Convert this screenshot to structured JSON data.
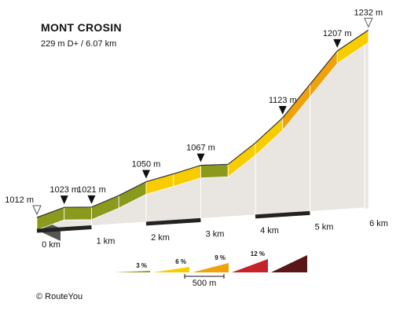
{
  "title": "MONT CROSIN",
  "subtitle": "229 m D+ / 6.07 km",
  "credit": "© RouteYou",
  "chart_data": {
    "type": "area",
    "distance_labels": [
      "0 km",
      "1 km",
      "2 km",
      "3 km",
      "4 km",
      "5 km",
      "6 km"
    ],
    "segments": [
      {
        "from_km": 0.0,
        "to_km": 0.5,
        "grade_class": 3
      },
      {
        "from_km": 0.5,
        "to_km": 1.0,
        "grade_class": 3
      },
      {
        "from_km": 1.0,
        "to_km": 1.5,
        "grade_class": 3
      },
      {
        "from_km": 1.5,
        "to_km": 2.0,
        "grade_class": 3
      },
      {
        "from_km": 2.0,
        "to_km": 2.5,
        "grade_class": 6
      },
      {
        "from_km": 2.5,
        "to_km": 3.0,
        "grade_class": 6
      },
      {
        "from_km": 3.0,
        "to_km": 3.5,
        "grade_class": 3
      },
      {
        "from_km": 3.5,
        "to_km": 4.0,
        "grade_class": 6
      },
      {
        "from_km": 4.0,
        "to_km": 4.5,
        "grade_class": 6
      },
      {
        "from_km": 4.5,
        "to_km": 5.0,
        "grade_class": 9
      },
      {
        "from_km": 5.0,
        "to_km": 5.5,
        "grade_class": 9
      },
      {
        "from_km": 5.5,
        "to_km": 6.07,
        "grade_class": 6
      }
    ],
    "profile": [
      {
        "km": 0.0,
        "elev": 1012
      },
      {
        "km": 0.5,
        "elev": 1023
      },
      {
        "km": 1.0,
        "elev": 1021
      },
      {
        "km": 1.5,
        "elev": 1034
      },
      {
        "km": 2.0,
        "elev": 1050
      },
      {
        "km": 2.5,
        "elev": 1058
      },
      {
        "km": 3.0,
        "elev": 1067
      },
      {
        "km": 3.5,
        "elev": 1066
      },
      {
        "km": 4.0,
        "elev": 1092
      },
      {
        "km": 4.5,
        "elev": 1123
      },
      {
        "km": 5.0,
        "elev": 1165
      },
      {
        "km": 5.5,
        "elev": 1207
      },
      {
        "km": 6.07,
        "elev": 1232
      }
    ],
    "markers": [
      {
        "km": 0.0,
        "elev": 1012,
        "label": "1012 m",
        "style": "hollow"
      },
      {
        "km": 0.5,
        "elev": 1023,
        "label": "1023 m",
        "style": "filled"
      },
      {
        "km": 1.0,
        "elev": 1021,
        "label": "1021 m",
        "style": "filled"
      },
      {
        "km": 2.0,
        "elev": 1050,
        "label": "1050 m",
        "style": "filled"
      },
      {
        "km": 3.0,
        "elev": 1067,
        "label": "1067 m",
        "style": "filled"
      },
      {
        "km": 4.5,
        "elev": 1123,
        "label": "1123 m",
        "style": "filled"
      },
      {
        "km": 5.5,
        "elev": 1207,
        "label": "1207 m",
        "style": "filled"
      },
      {
        "km": 6.07,
        "elev": 1232,
        "label": "1232 m",
        "style": "hollow"
      }
    ],
    "legend": {
      "scale_label": "500 m",
      "items": [
        {
          "label": "3 %",
          "grade_class": 3,
          "color": "#8b9a1c"
        },
        {
          "label": "6 %",
          "grade_class": 6,
          "color": "#f8cd00"
        },
        {
          "label": "9 %",
          "grade_class": 9,
          "color": "#efa20a"
        },
        {
          "label": "12 %",
          "grade_class": 12,
          "color": "#c4232a"
        },
        {
          "label": "",
          "grade_class": 15,
          "color": "#5a1616"
        }
      ]
    }
  }
}
